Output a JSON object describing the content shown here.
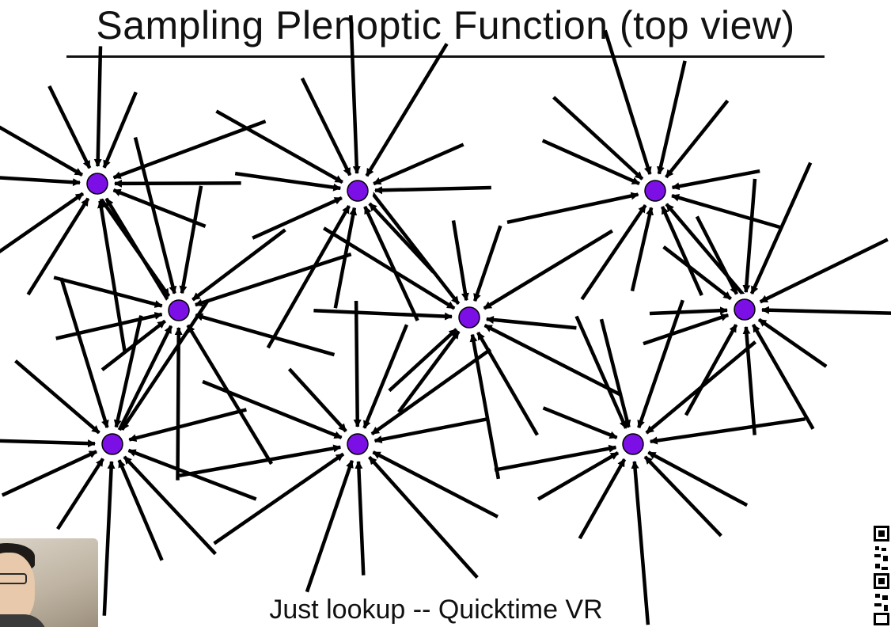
{
  "slide": {
    "title": "Sampling Plenoptic Function (top view)",
    "caption": "Just lookup -- Quicktime VR"
  },
  "diagram": {
    "node_color": "#7b0fe6",
    "arrow_color": "#000000",
    "viewpoints": [
      {
        "id": "v1",
        "label": "",
        "row": 1,
        "col": 1
      },
      {
        "id": "v2",
        "label": "",
        "row": 1,
        "col": 2
      },
      {
        "id": "v3",
        "label": "",
        "row": 1,
        "col": 3
      },
      {
        "id": "v4",
        "label": "",
        "row": 2,
        "col": 1
      },
      {
        "id": "v5",
        "label": "",
        "row": 2,
        "col": 2
      },
      {
        "id": "v6",
        "label": "",
        "row": 2,
        "col": 3
      },
      {
        "id": "v7",
        "label": "",
        "row": 3,
        "col": 1
      },
      {
        "id": "v8",
        "label": "",
        "row": 3,
        "col": 2
      },
      {
        "id": "v9",
        "label": "",
        "row": 3,
        "col": 3
      }
    ],
    "incoming_rays_per_viewpoint": 12
  },
  "overlays": {
    "webcam": {
      "icon": "presenter-webcam-thumbnail"
    },
    "qr": {
      "icon": "qr-code-icon"
    }
  }
}
